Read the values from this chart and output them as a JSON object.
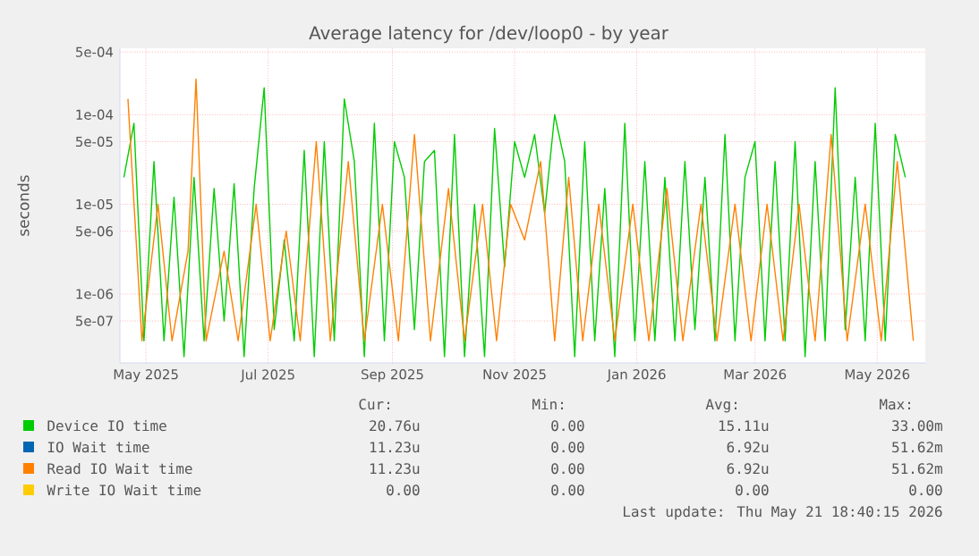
{
  "chart_data": {
    "type": "line",
    "title": "Average latency for /dev/loop0 - by year",
    "ylabel": "seconds",
    "log": "y",
    "grid": true,
    "legend": "bottom",
    "xlim": [
      "2025-04-18",
      "2026-05-25"
    ],
    "xticks": [
      {
        "value": "2025-05-01",
        "label": "May 2025"
      },
      {
        "value": "2025-07-01",
        "label": "Jul 2025"
      },
      {
        "value": "2025-09-01",
        "label": "Sep 2025"
      },
      {
        "value": "2025-11-01",
        "label": "Nov 2025"
      },
      {
        "value": "2026-01-01",
        "label": "Jan 2026"
      },
      {
        "value": "2026-03-01",
        "label": "Mar 2026"
      },
      {
        "value": "2026-05-01",
        "label": "May 2026"
      }
    ],
    "ylim": [
      1.7e-07,
      0.00055
    ],
    "yticks": [
      {
        "value": 5e-07,
        "label": "5e-07"
      },
      {
        "value": 1e-06,
        "label": "1e-06"
      },
      {
        "value": 5e-06,
        "label": "5e-06"
      },
      {
        "value": 1e-05,
        "label": "1e-05"
      },
      {
        "value": 5e-05,
        "label": "5e-05"
      },
      {
        "value": 0.0001,
        "label": "1e-04"
      },
      {
        "value": 0.0005,
        "label": "5e-04"
      }
    ],
    "series": [
      {
        "name": "Device IO time",
        "color": "#00cc00",
        "x": [
          "2025-04-20",
          "2025-04-25",
          "2025-04-30",
          "2025-05-05",
          "2025-05-10",
          "2025-05-15",
          "2025-05-20",
          "2025-05-25",
          "2025-05-30",
          "2025-06-04",
          "2025-06-09",
          "2025-06-14",
          "2025-06-19",
          "2025-06-24",
          "2025-06-29",
          "2025-07-04",
          "2025-07-09",
          "2025-07-14",
          "2025-07-19",
          "2025-07-24",
          "2025-07-29",
          "2025-08-03",
          "2025-08-08",
          "2025-08-13",
          "2025-08-18",
          "2025-08-23",
          "2025-08-28",
          "2025-09-02",
          "2025-09-07",
          "2025-09-12",
          "2025-09-17",
          "2025-09-22",
          "2025-09-27",
          "2025-10-02",
          "2025-10-07",
          "2025-10-12",
          "2025-10-17",
          "2025-10-22",
          "2025-10-27",
          "2025-11-01",
          "2025-11-06",
          "2025-11-11",
          "2025-11-16",
          "2025-11-21",
          "2025-11-26",
          "2025-12-01",
          "2025-12-06",
          "2025-12-11",
          "2025-12-16",
          "2025-12-21",
          "2025-12-26",
          "2025-12-31",
          "2026-01-05",
          "2026-01-10",
          "2026-01-15",
          "2026-01-20",
          "2026-01-25",
          "2026-01-30",
          "2026-02-04",
          "2026-02-09",
          "2026-02-14",
          "2026-02-19",
          "2026-02-24",
          "2026-03-01",
          "2026-03-06",
          "2026-03-11",
          "2026-03-16",
          "2026-03-21",
          "2026-03-26",
          "2026-03-31",
          "2026-04-05",
          "2026-04-10",
          "2026-04-15",
          "2026-04-20",
          "2026-04-25",
          "2026-04-30",
          "2026-05-05",
          "2026-05-10",
          "2026-05-15"
        ],
        "values": [
          2e-05,
          8e-05,
          3e-07,
          3e-05,
          3e-07,
          1.2e-05,
          2e-07,
          2e-05,
          3e-07,
          1.5e-05,
          5e-07,
          1.7e-05,
          2e-07,
          1.5e-05,
          0.0002,
          4e-07,
          4e-06,
          3e-07,
          4e-05,
          2e-07,
          5e-05,
          3e-07,
          0.00015,
          3e-05,
          2e-07,
          8e-05,
          3e-07,
          5e-05,
          2e-05,
          4e-07,
          3e-05,
          4e-05,
          2e-07,
          6e-05,
          2e-07,
          1e-05,
          2e-07,
          7e-05,
          2e-06,
          5e-05,
          2e-05,
          6e-05,
          8e-06,
          0.0001,
          3e-05,
          2e-07,
          5e-05,
          3e-07,
          1.5e-05,
          2e-07,
          8e-05,
          3e-07,
          3e-05,
          3e-07,
          2e-05,
          3e-07,
          3e-05,
          4e-07,
          2e-05,
          3e-07,
          6e-05,
          3e-07,
          2e-05,
          5e-05,
          3e-07,
          3e-05,
          3e-07,
          5e-05,
          2e-07,
          3e-05,
          3e-07,
          0.0002,
          4e-07,
          2e-05,
          3e-07,
          8e-05,
          3e-07,
          6e-05,
          2e-05
        ]
      },
      {
        "name": "IO Wait time",
        "color": "#0066b3"
      },
      {
        "name": "Read IO Wait time",
        "color": "#ff8000",
        "x": [
          "2025-04-22",
          "2025-04-29",
          "2025-05-07",
          "2025-05-14",
          "2025-05-22",
          "2025-05-26",
          "2025-05-31",
          "2025-06-09",
          "2025-06-16",
          "2025-06-25",
          "2025-07-02",
          "2025-07-10",
          "2025-07-17",
          "2025-07-25",
          "2025-08-01",
          "2025-08-10",
          "2025-08-18",
          "2025-08-27",
          "2025-09-04",
          "2025-09-12",
          "2025-09-20",
          "2025-09-29",
          "2025-10-07",
          "2025-10-16",
          "2025-10-23",
          "2025-10-30",
          "2025-11-06",
          "2025-11-14",
          "2025-11-21",
          "2025-11-28",
          "2025-12-05",
          "2025-12-13",
          "2025-12-21",
          "2025-12-30",
          "2026-01-07",
          "2026-01-16",
          "2026-01-24",
          "2026-02-02",
          "2026-02-10",
          "2026-02-19",
          "2026-02-27",
          "2026-03-07",
          "2026-03-15",
          "2026-03-23",
          "2026-03-31",
          "2026-04-08",
          "2026-04-16",
          "2026-04-25",
          "2026-05-03",
          "2026-05-11",
          "2026-05-19"
        ],
        "values": [
          0.00015,
          3e-07,
          1e-05,
          3e-07,
          3e-06,
          0.00025,
          3e-07,
          3e-06,
          3e-07,
          1e-05,
          3e-07,
          5e-06,
          3e-07,
          5e-05,
          3e-07,
          3e-05,
          3e-07,
          1e-05,
          3e-07,
          6e-05,
          3e-07,
          1.5e-05,
          3e-07,
          1e-05,
          3e-07,
          1e-05,
          4e-06,
          3e-05,
          3e-07,
          2e-05,
          3e-07,
          1e-05,
          3e-07,
          1e-05,
          3e-07,
          1.5e-05,
          3e-07,
          1e-05,
          3e-07,
          1e-05,
          3e-07,
          1e-05,
          3e-07,
          1e-05,
          3e-07,
          6e-05,
          3e-07,
          1e-05,
          3e-07,
          3e-05,
          3e-07
        ]
      },
      {
        "name": "Write IO Wait time",
        "color": "#ffcc00"
      }
    ],
    "annotations": [
      "Cur:",
      "Min:",
      "Avg:",
      "Max:",
      "20.76u",
      "0.00",
      "15.11u",
      "33.00m",
      "11.23u",
      "0.00",
      "6.92u",
      "51.62m",
      "11.23u",
      "0.00",
      "6.92u",
      "51.62m",
      "0.00",
      "0.00",
      "0.00",
      "0.00",
      "Last update: Thu May 21 18:40:15 2026"
    ]
  }
}
